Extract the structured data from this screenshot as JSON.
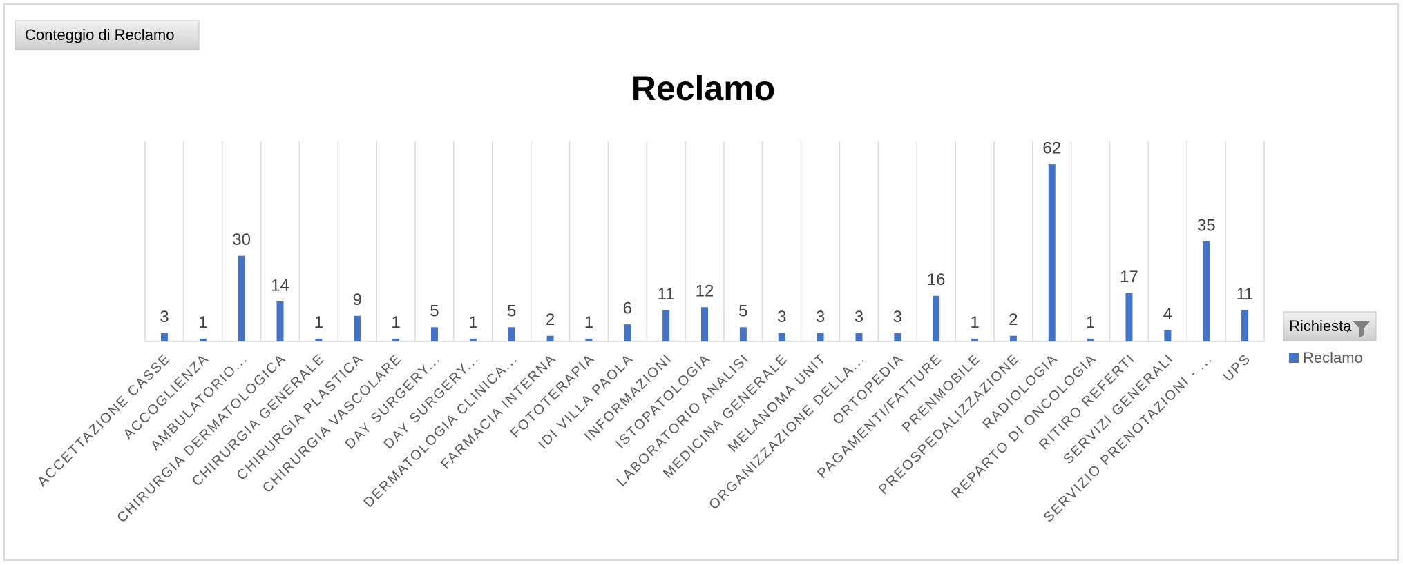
{
  "chart_data": {
    "type": "bar",
    "title": "Reclamo",
    "value_field_button": "Conteggio di Reclamo",
    "axis_field_button": "Richiesta",
    "categories": [
      "ACCETTAZIONE CASSE",
      "ACCOGLIENZA",
      "AMBULATORIO...",
      "CHIRURGIA DERMATOLOGICA",
      "CHIRURGIA GENERALE",
      "CHIRURGIA PLASTICA",
      "CHIRURGIA VASCOLARE",
      "DAY SURGERY...",
      "DAY SURGERY...",
      "DERMATOLOGIA CLINICA...",
      "FARMACIA INTERNA",
      "FOTOTERAPIA",
      "IDI VILLA PAOLA",
      "INFORMAZIONI",
      "ISTOPATOLOGIA",
      "LABORATORIO ANALISI",
      "MEDICINA GENERALE",
      "MELANOMA UNIT",
      "ORGANIZZAZIONE DELLA...",
      "ORTOPEDIA",
      "PAGAMENTI/FATTURE",
      "PRENMOBILE",
      "PREOSPEDALIZZAZIONE",
      "RADIOLOGIA",
      "REPARTO DI ONCOLOGIA",
      "RITIRO REFERTI",
      "SERVIZI GENERALI",
      "SERVIZIO PRENOTAZIONI - ...",
      "UPS"
    ],
    "series": [
      {
        "name": "Reclamo",
        "color": "#4472c4",
        "values": [
          3,
          1,
          30,
          14,
          1,
          9,
          1,
          5,
          1,
          5,
          2,
          1,
          6,
          11,
          12,
          5,
          3,
          3,
          3,
          3,
          16,
          1,
          2,
          62,
          1,
          17,
          4,
          35,
          11
        ]
      }
    ],
    "ylim": [
      0,
      70
    ],
    "grid": true
  }
}
